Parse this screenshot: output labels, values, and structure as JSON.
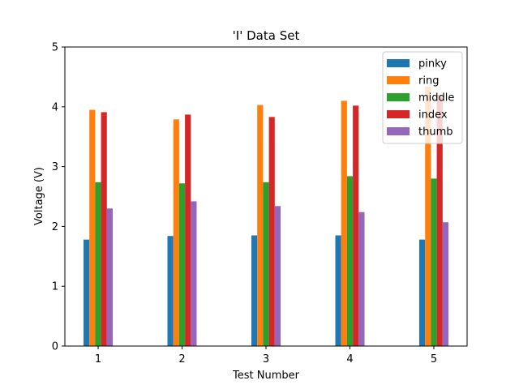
{
  "chart_data": {
    "type": "bar",
    "title": "'I' Data Set",
    "xlabel": "Test Number",
    "ylabel": "Voltage (V)",
    "categories": [
      "1",
      "2",
      "3",
      "4",
      "5"
    ],
    "ylim": [
      0,
      5
    ],
    "yticks": [
      "0",
      "1",
      "2",
      "3",
      "4",
      "5"
    ],
    "legend_position": "top-right",
    "grid": false,
    "series": [
      {
        "name": "pinky",
        "color": "#1f77b4",
        "values": [
          1.78,
          1.84,
          1.85,
          1.85,
          1.78
        ]
      },
      {
        "name": "ring",
        "color": "#ff7f0e",
        "values": [
          3.95,
          3.79,
          4.03,
          4.1,
          4.34
        ]
      },
      {
        "name": "middle",
        "color": "#2ca02c",
        "values": [
          2.74,
          2.72,
          2.74,
          2.84,
          2.8
        ]
      },
      {
        "name": "index",
        "color": "#d62728",
        "values": [
          3.91,
          3.87,
          3.83,
          4.02,
          4.2
        ]
      },
      {
        "name": "thumb",
        "color": "#9467bd",
        "values": [
          2.3,
          2.42,
          2.34,
          2.24,
          2.07
        ]
      }
    ]
  }
}
